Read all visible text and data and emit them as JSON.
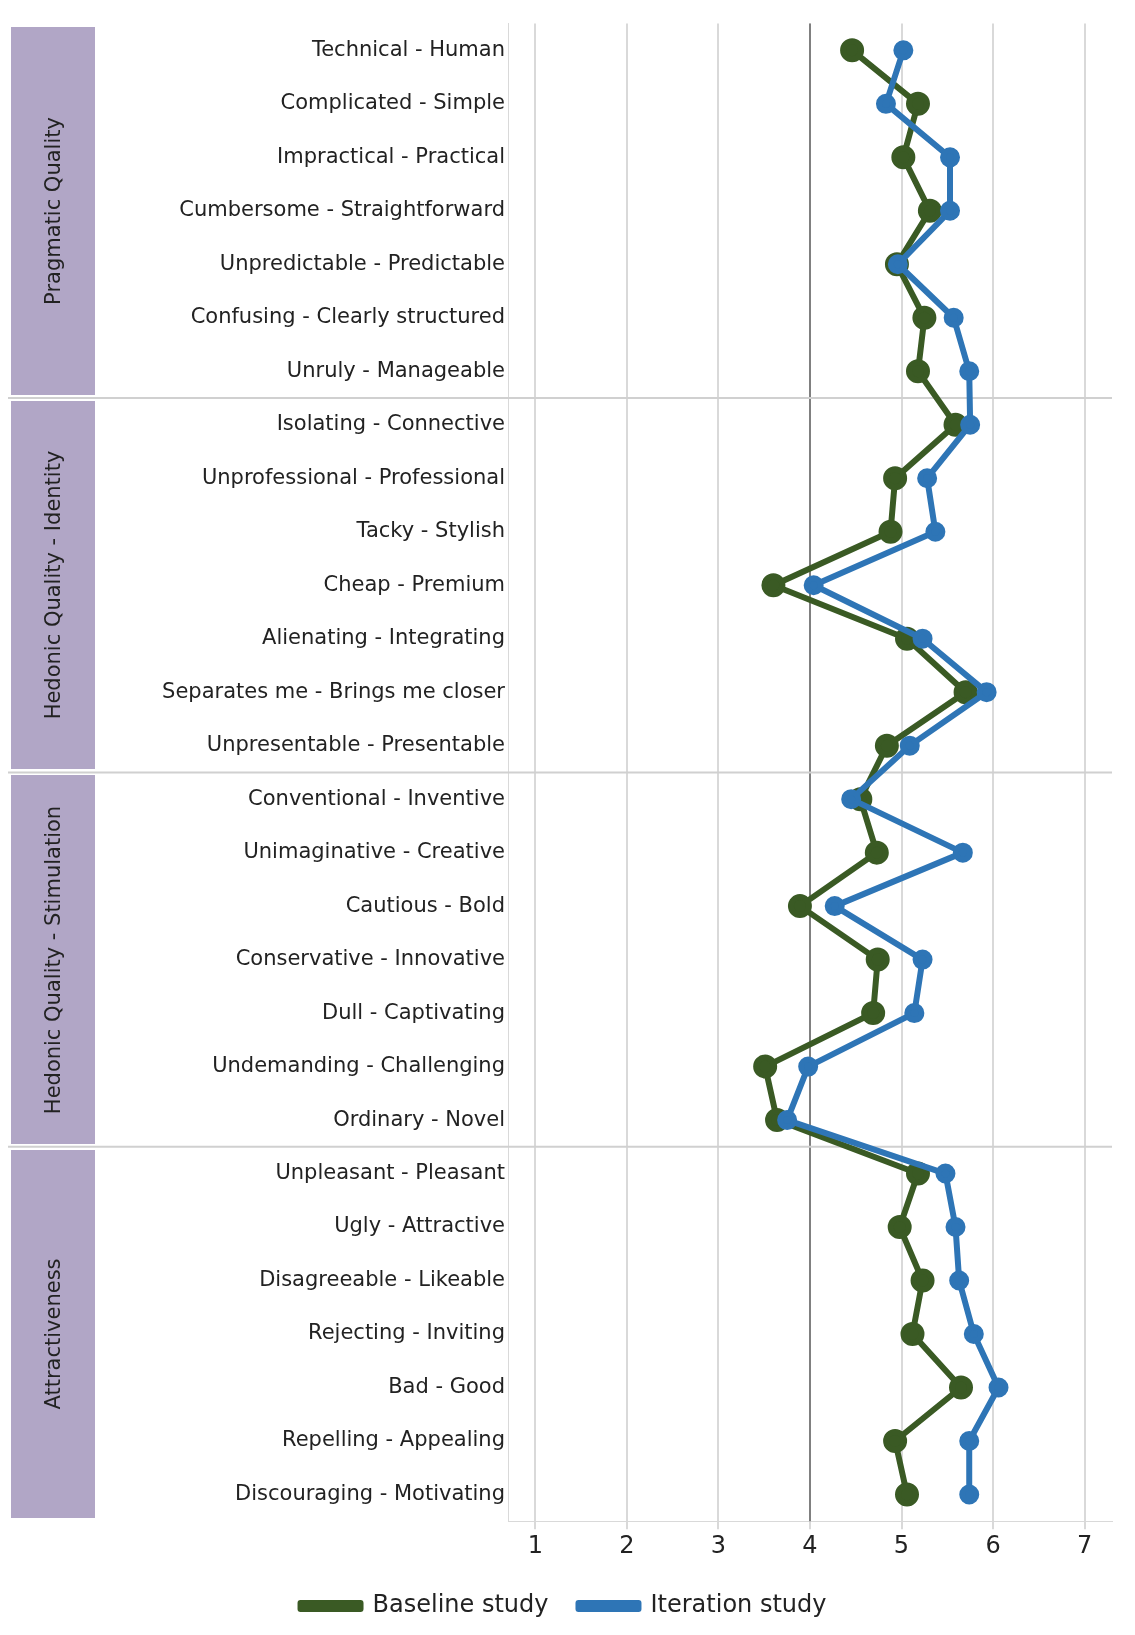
{
  "chart_data": {
    "type": "line",
    "orientation": "horizontal",
    "categories": [
      "Technical - Human",
      "Complicated - Simple",
      "Impractical - Practical",
      "Cumbersome - Straightforward",
      "Unpredictable - Predictable",
      "Confusing - Clearly structured",
      "Unruly - Manageable",
      "Isolating - Connective",
      "Unprofessional - Professional",
      "Tacky - Stylish",
      "Cheap - Premium",
      "Alienating - Integrating",
      "Separates me - Brings me closer",
      "Unpresentable - Presentable",
      "Conventional - Inventive",
      "Unimaginative - Creative",
      "Cautious - Bold",
      "Conservative - Innovative",
      "Dull - Captivating",
      "Undemanding - Challenging",
      "Ordinary - Novel",
      "Unpleasant - Pleasant",
      "Ugly - Attractive",
      "Disagreeable - Likeable",
      "Rejecting - Inviting",
      "Bad - Good",
      "Repelling - Appealing",
      "Discouraging - Motivating"
    ],
    "series": [
      {
        "name": "Baseline study",
        "color": "#3a5a24",
        "values": [
          4.46,
          5.18,
          5.02,
          5.31,
          4.95,
          5.25,
          5.18,
          5.59,
          4.93,
          4.88,
          3.6,
          5.06,
          5.7,
          4.84,
          4.55,
          4.73,
          3.89,
          4.74,
          4.69,
          3.51,
          3.64,
          5.18,
          4.98,
          5.23,
          5.12,
          5.65,
          4.93,
          5.06
        ]
      },
      {
        "name": "Iteration study",
        "color": "#2e75b6",
        "values": [
          5.02,
          4.83,
          5.53,
          5.53,
          4.96,
          5.57,
          5.74,
          5.75,
          5.28,
          5.37,
          4.04,
          5.23,
          5.93,
          5.09,
          4.45,
          5.67,
          4.27,
          5.23,
          5.14,
          3.98,
          3.75,
          5.48,
          5.59,
          5.63,
          5.79,
          6.06,
          5.74,
          5.74
        ]
      }
    ],
    "xlim": [
      0.7,
      7.3
    ],
    "xticks": [
      1,
      2,
      3,
      4,
      5,
      6,
      7
    ],
    "grid": "x",
    "legend": "bottom",
    "marker": "circle",
    "line_style": "solid",
    "ref_lines": [
      {
        "axis": "x",
        "value": 4,
        "color": "#808080"
      }
    ],
    "annotations": [
      "Pragmatic Quality",
      "Hedonic Quality - Identity",
      "Hedonic Quality - Stimulation",
      "Attractiveness"
    ]
  }
}
